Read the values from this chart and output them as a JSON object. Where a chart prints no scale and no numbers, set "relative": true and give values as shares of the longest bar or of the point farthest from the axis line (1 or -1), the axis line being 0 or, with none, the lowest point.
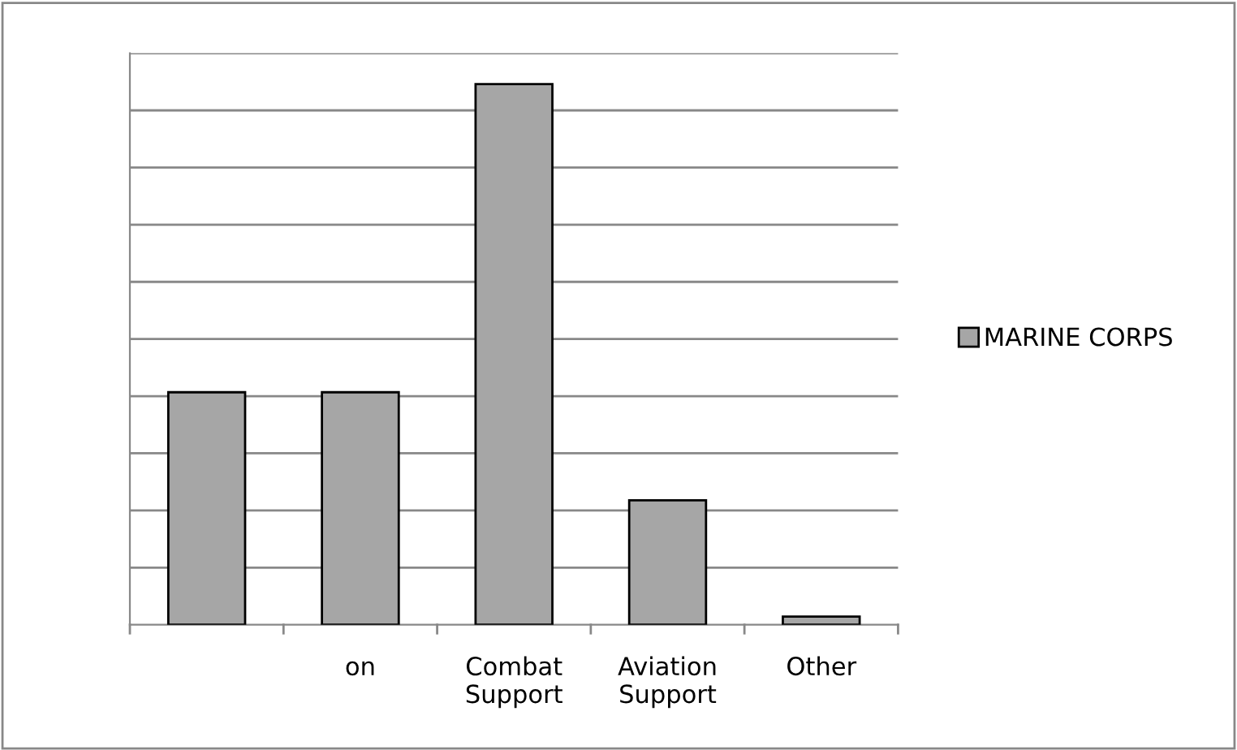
{
  "chart_data": {
    "type": "bar",
    "relative": true,
    "categories": [
      null,
      "on",
      "Combat Support",
      "Aviation Support",
      "Other"
    ],
    "series": [
      {
        "name": "MARINE CORPS",
        "color": "#a6a6a6",
        "values": [
          0.43,
          0.43,
          1,
          0.23,
          0.015
        ]
      }
    ],
    "grid": "y",
    "legend": "right"
  }
}
